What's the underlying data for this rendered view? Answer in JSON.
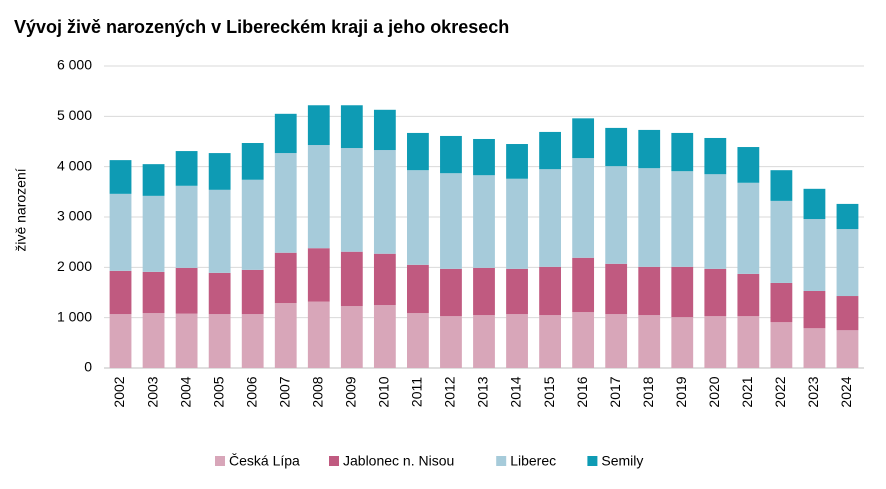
{
  "chart_data": {
    "type": "stacked_bar",
    "title": "Vývoj živě narozených v Libereckém kraji a jeho okresech",
    "y_label": "živě narození",
    "categories": [
      "2002",
      "2003",
      "2004",
      "2005",
      "2006",
      "2007",
      "2008",
      "2009",
      "2010",
      "2011",
      "2012",
      "2013",
      "2014",
      "2015",
      "2016",
      "2017",
      "2018",
      "2019",
      "2020",
      "2021",
      "2022",
      "2023",
      "2024"
    ],
    "series": [
      {
        "name": "Česká Lípa",
        "color": "#d8a6b9",
        "values": [
          1070,
          1090,
          1080,
          1070,
          1070,
          1290,
          1320,
          1230,
          1250,
          1090,
          1030,
          1050,
          1070,
          1050,
          1110,
          1070,
          1050,
          1010,
          1030,
          1030,
          910,
          790,
          750
        ]
      },
      {
        "name": "Jablonec n. Nisou",
        "color": "#c05a80",
        "values": [
          860,
          820,
          910,
          820,
          880,
          1000,
          1060,
          1080,
          1020,
          960,
          940,
          940,
          900,
          960,
          1080,
          1000,
          960,
          1000,
          940,
          840,
          780,
          740,
          680
        ]
      },
      {
        "name": "Liberec",
        "color": "#a6cbda",
        "values": [
          1530,
          1510,
          1630,
          1650,
          1790,
          1980,
          2050,
          2060,
          2060,
          1880,
          1900,
          1840,
          1790,
          1940,
          1980,
          1940,
          1960,
          1900,
          1880,
          1810,
          1630,
          1430,
          1330
        ]
      },
      {
        "name": "Semily",
        "color": "#0e9bb4",
        "values": [
          670,
          630,
          690,
          730,
          730,
          780,
          790,
          850,
          800,
          740,
          740,
          720,
          690,
          740,
          790,
          760,
          760,
          760,
          720,
          710,
          610,
          600,
          500
        ]
      }
    ],
    "ylim": [
      0,
      6000
    ],
    "yticks": [
      0,
      {
        "value": 1000,
        "label": "1 000"
      },
      {
        "value": 2000,
        "label": "2 000"
      },
      {
        "value": 3000,
        "label": "3 000"
      },
      {
        "value": 4000,
        "label": "4 000"
      },
      {
        "value": 5000,
        "label": "5 000"
      },
      {
        "value": 6000,
        "label": "6 000"
      }
    ],
    "grid": true,
    "legend": "bottom"
  }
}
